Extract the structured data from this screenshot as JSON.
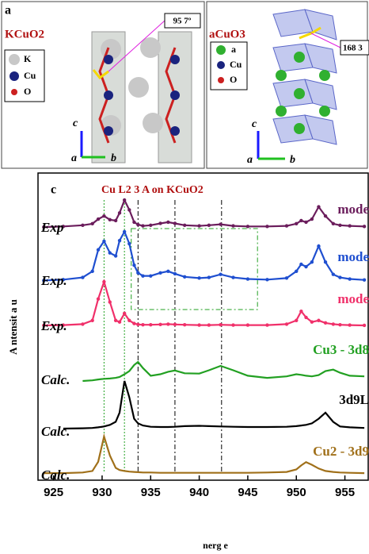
{
  "structures": [
    {
      "panel": "a",
      "formula": "KCuO2",
      "angle": "95 7º",
      "legend": [
        "K",
        "Cu",
        "O"
      ],
      "axes": [
        "c",
        "a",
        "b"
      ]
    },
    {
      "formula": "aCuO3",
      "angle": "168 3",
      "legend": [
        "a",
        "Cu",
        "O"
      ],
      "axes": [
        "c",
        "a",
        "b"
      ]
    }
  ],
  "chart_data": {
    "type": "line",
    "panel": "c",
    "title": "Cu L2 3   A   on KCuO2",
    "xlabel": "nerg    e",
    "ylabel": "A    ntensit    a u",
    "x": [
      924,
      926,
      928,
      929,
      929.6,
      930.2,
      930.8,
      931.4,
      931.8,
      932.3,
      932.8,
      933.3,
      933.7,
      934.2,
      935,
      936,
      936.8,
      937.5,
      938.5,
      940,
      941,
      942.2,
      943.5,
      945,
      947,
      949,
      950,
      950.5,
      951,
      951.6,
      952.3,
      953,
      953.8,
      954.5,
      955.5,
      957
    ],
    "series": [
      {
        "name": "mode",
        "tag": "Exp",
        "color": "#6b1d5c",
        "values": [
          82.4,
          82.6,
          83,
          83.5,
          85,
          86,
          84.8,
          84.5,
          87,
          91.2,
          88,
          84,
          83.2,
          82.8,
          83,
          83.6,
          84,
          83.6,
          83,
          82.8,
          83,
          83.3,
          82.8,
          82.6,
          82.6,
          82.8,
          83.5,
          84.5,
          84,
          85,
          89,
          86,
          83.5,
          83,
          82.8,
          82.6
        ]
      },
      {
        "name": "mode",
        "tag": "Exp.",
        "color": "#1f4fd0",
        "values": [
          65,
          65.3,
          66,
          68,
          75,
          77.8,
          74,
          73,
          78,
          80.9,
          77,
          70,
          67.5,
          66.5,
          66.5,
          67.5,
          68,
          67.2,
          66.2,
          65.8,
          66,
          67,
          66,
          65.5,
          65.3,
          65.8,
          68,
          70.3,
          69.5,
          71,
          76.2,
          71,
          67,
          66,
          65.5,
          65.2
        ]
      },
      {
        "name": "mode",
        "tag": "Exp.",
        "color": "#f0306a",
        "values": [
          50.4,
          50.5,
          50.8,
          52,
          59,
          64.6,
          58,
          52,
          51.5,
          54.3,
          52,
          51,
          50.7,
          50.6,
          50.6,
          50.7,
          50.8,
          50.7,
          50.6,
          50.5,
          50.5,
          50.6,
          50.5,
          50.5,
          50.5,
          50.8,
          52,
          55,
          53,
          51.5,
          52,
          51.2,
          50.8,
          50.6,
          50.5,
          50.4
        ]
      },
      {
        "name": "Cu3 - 3d8",
        "tag": "Calc.",
        "color": "#22a022",
        "values": [
          null,
          null,
          32.3,
          32.5,
          32.8,
          33,
          33.1,
          33.3,
          33.6,
          34.5,
          35.5,
          37.5,
          38.5,
          36.5,
          34,
          34.5,
          35.3,
          35.7,
          34.8,
          34.7,
          35.8,
          37.2,
          35.8,
          34,
          33.3,
          33.8,
          34.5,
          34.3,
          34,
          33.8,
          34.2,
          35.5,
          36,
          35,
          34,
          33.8
        ]
      },
      {
        "name": "3d9L",
        "tag": "Calc.",
        "color": "#000000",
        "values": [
          null,
          16.8,
          16.9,
          17,
          17.2,
          17.5,
          18,
          19,
          22,
          32.3,
          27,
          20,
          18.5,
          17.8,
          17.4,
          17.3,
          17.3,
          17.4,
          17.6,
          17.7,
          17.6,
          17.5,
          17.4,
          17.3,
          17.3,
          17.4,
          17.6,
          17.8,
          18,
          18.5,
          20,
          22,
          19,
          17.5,
          17.2,
          17
        ]
      },
      {
        "name": "Cu2 - 3d9",
        "tag": "Calc.",
        "color": "#a0701a",
        "values": [
          2.3,
          2.3,
          2.5,
          3,
          6,
          14.2,
          8,
          4,
          3.3,
          3,
          2.8,
          2.7,
          2.6,
          2.5,
          2.5,
          2.4,
          2.4,
          2.4,
          2.4,
          2.4,
          2.4,
          2.4,
          2.4,
          2.4,
          2.5,
          2.7,
          3.5,
          4.8,
          5.9,
          5,
          3.8,
          3,
          2.7,
          2.5,
          2.4,
          2.3
        ]
      }
    ],
    "guides": [
      {
        "x": 930.2,
        "color": "#22a022"
      },
      {
        "x": 932.3,
        "color": "#22a022"
      },
      {
        "x": 933.7,
        "color": "#000000"
      },
      {
        "x": 937.5,
        "color": "#000000"
      },
      {
        "x": 942.3,
        "color": "#000000"
      }
    ],
    "highlight_range": [
      933,
      946
    ],
    "xlim": [
      923.4,
      957.4
    ],
    "ylim": [
      0,
      100
    ],
    "xticks": [
      925,
      930,
      935,
      940,
      945,
      950,
      955
    ]
  }
}
